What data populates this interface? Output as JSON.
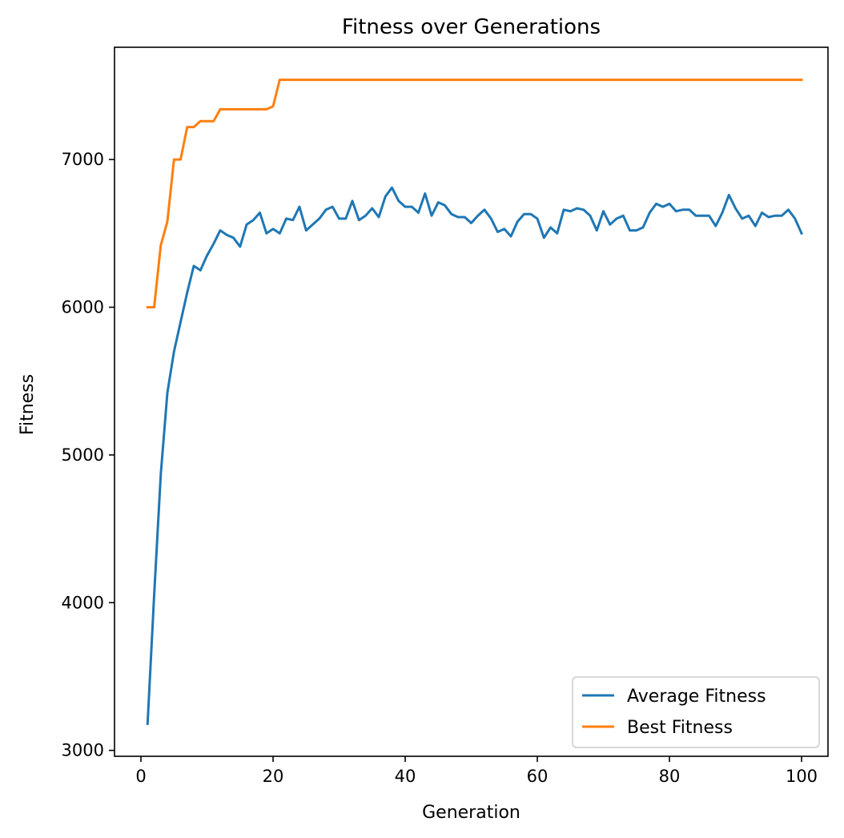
{
  "chart_data": {
    "type": "line",
    "title": "Fitness over Generations",
    "xlabel": "Generation",
    "ylabel": "Fitness",
    "xlim": [
      -4,
      104
    ],
    "ylim": [
      2960,
      7760
    ],
    "xticks": [
      0,
      20,
      40,
      60,
      80,
      100
    ],
    "yticks": [
      3000,
      4000,
      5000,
      6000,
      7000
    ],
    "legend_position": "lower-right",
    "x": [
      1,
      2,
      3,
      4,
      5,
      6,
      7,
      8,
      9,
      10,
      11,
      12,
      13,
      14,
      15,
      16,
      17,
      18,
      19,
      20,
      21,
      22,
      23,
      24,
      25,
      26,
      27,
      28,
      29,
      30,
      31,
      32,
      33,
      34,
      35,
      36,
      37,
      38,
      39,
      40,
      41,
      42,
      43,
      44,
      45,
      46,
      47,
      48,
      49,
      50,
      51,
      52,
      53,
      54,
      55,
      56,
      57,
      58,
      59,
      60,
      61,
      62,
      63,
      64,
      65,
      66,
      67,
      68,
      69,
      70,
      71,
      72,
      73,
      74,
      75,
      76,
      77,
      78,
      79,
      80,
      81,
      82,
      83,
      84,
      85,
      86,
      87,
      88,
      89,
      90,
      91,
      92,
      93,
      94,
      95,
      96,
      97,
      98,
      99,
      100
    ],
    "series": [
      {
        "name": "Average Fitness",
        "color": "#1f77b4",
        "values": [
          3180,
          4050,
          4870,
          5420,
          5700,
          5900,
          6100,
          6280,
          6250,
          6350,
          6430,
          6520,
          6490,
          6470,
          6410,
          6560,
          6590,
          6640,
          6500,
          6530,
          6500,
          6600,
          6590,
          6680,
          6520,
          6560,
          6600,
          6660,
          6680,
          6600,
          6600,
          6720,
          6590,
          6620,
          6670,
          6610,
          6750,
          6810,
          6720,
          6680,
          6680,
          6640,
          6770,
          6620,
          6710,
          6690,
          6630,
          6610,
          6610,
          6570,
          6620,
          6660,
          6600,
          6510,
          6530,
          6480,
          6580,
          6630,
          6630,
          6600,
          6470,
          6540,
          6500,
          6660,
          6650,
          6670,
          6660,
          6620,
          6520,
          6650,
          6560,
          6600,
          6620,
          6520,
          6520,
          6540,
          6640,
          6700,
          6680,
          6700,
          6650,
          6660,
          6660,
          6620,
          6620,
          6620,
          6550,
          6640,
          6760,
          6670,
          6600,
          6620,
          6550,
          6640,
          6610,
          6620,
          6620,
          6660,
          6600,
          6500
        ]
      },
      {
        "name": "Best Fitness",
        "color": "#ff7f0e",
        "values": [
          6000,
          6000,
          6420,
          6580,
          7000,
          7000,
          7220,
          7220,
          7260,
          7260,
          7260,
          7340,
          7340,
          7340,
          7340,
          7340,
          7340,
          7340,
          7340,
          7360,
          7540,
          7540,
          7540,
          7540,
          7540,
          7540,
          7540,
          7540,
          7540,
          7540,
          7540,
          7540,
          7540,
          7540,
          7540,
          7540,
          7540,
          7540,
          7540,
          7540,
          7540,
          7540,
          7540,
          7540,
          7540,
          7540,
          7540,
          7540,
          7540,
          7540,
          7540,
          7540,
          7540,
          7540,
          7540,
          7540,
          7540,
          7540,
          7540,
          7540,
          7540,
          7540,
          7540,
          7540,
          7540,
          7540,
          7540,
          7540,
          7540,
          7540,
          7540,
          7540,
          7540,
          7540,
          7540,
          7540,
          7540,
          7540,
          7540,
          7540,
          7540,
          7540,
          7540,
          7540,
          7540,
          7540,
          7540,
          7540,
          7540,
          7540,
          7540,
          7540,
          7540,
          7540,
          7540,
          7540,
          7540,
          7540,
          7540,
          7540
        ]
      }
    ]
  }
}
